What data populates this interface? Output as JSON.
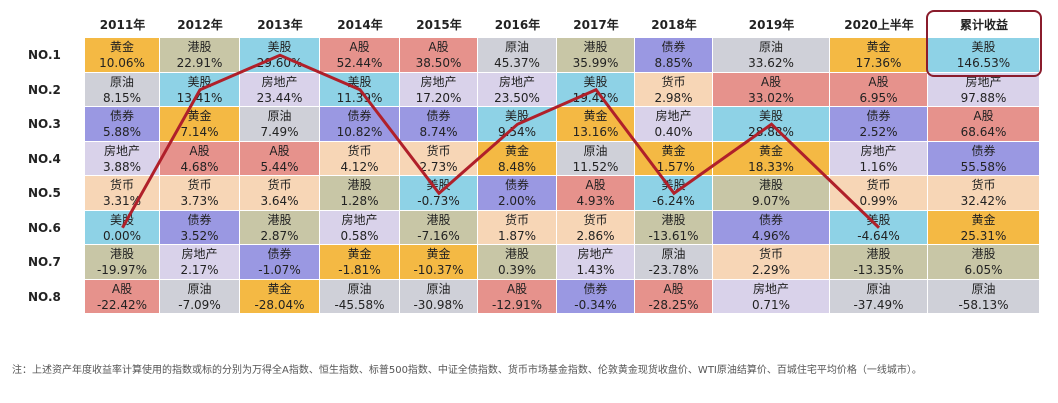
{
  "table": {
    "columns": [
      "2011年",
      "2012年",
      "2013年",
      "2014年",
      "2015年",
      "2016年",
      "2017年",
      "2018年",
      "2019年",
      "2020上半年",
      "累计收益"
    ],
    "highlight_column": 10,
    "line_asset": "美股",
    "line_color": "#b0202a",
    "colors": {
      "黄金": "#f4b944",
      "港股": "#c8c6a6",
      "美股": "#8ed2e6",
      "A股": "#e6928c",
      "原油": "#cfd0d8",
      "债券": "#9a98e2",
      "房地产": "#d9d2ea",
      "货币": "#f7d6b6"
    },
    "rows": [
      {
        "label": "NO.1",
        "cells": [
          [
            "黄金",
            "10.06%"
          ],
          [
            "港股",
            "22.91%"
          ],
          [
            "美股",
            "29.60%"
          ],
          [
            "A股",
            "52.44%"
          ],
          [
            "A股",
            "38.50%"
          ],
          [
            "原油",
            "45.37%"
          ],
          [
            "港股",
            "35.99%"
          ],
          [
            "债券",
            "8.85%"
          ],
          [
            "原油",
            "33.62%"
          ],
          [
            "黄金",
            "17.36%"
          ],
          [
            "美股",
            "146.53%"
          ]
        ]
      },
      {
        "label": "NO.2",
        "cells": [
          [
            "原油",
            "8.15%"
          ],
          [
            "美股",
            "13.41%"
          ],
          [
            "房地产",
            "23.44%"
          ],
          [
            "美股",
            "11.39%"
          ],
          [
            "房地产",
            "17.20%"
          ],
          [
            "房地产",
            "23.50%"
          ],
          [
            "美股",
            "19.42%"
          ],
          [
            "货币",
            "2.98%"
          ],
          [
            "A股",
            "33.02%"
          ],
          [
            "A股",
            "6.95%"
          ],
          [
            "房地产",
            "97.88%"
          ]
        ]
      },
      {
        "label": "NO.3",
        "cells": [
          [
            "债券",
            "5.88%"
          ],
          [
            "黄金",
            "7.14%"
          ],
          [
            "原油",
            "7.49%"
          ],
          [
            "债券",
            "10.82%"
          ],
          [
            "债券",
            "8.74%"
          ],
          [
            "美股",
            "9.54%"
          ],
          [
            "黄金",
            "13.16%"
          ],
          [
            "房地产",
            "0.40%"
          ],
          [
            "美股",
            "28.88%"
          ],
          [
            "债券",
            "2.52%"
          ],
          [
            "A股",
            "68.64%"
          ]
        ]
      },
      {
        "label": "NO.4",
        "cells": [
          [
            "房地产",
            "3.88%"
          ],
          [
            "A股",
            "4.68%"
          ],
          [
            "A股",
            "5.44%"
          ],
          [
            "货币",
            "4.12%"
          ],
          [
            "货币",
            "2.73%"
          ],
          [
            "黄金",
            "8.48%"
          ],
          [
            "原油",
            "11.52%"
          ],
          [
            "黄金",
            "-1.57%"
          ],
          [
            "黄金",
            "18.33%"
          ],
          [
            "房地产",
            "1.16%"
          ],
          [
            "债券",
            "55.58%"
          ]
        ]
      },
      {
        "label": "NO.5",
        "cells": [
          [
            "货币",
            "3.31%"
          ],
          [
            "货币",
            "3.73%"
          ],
          [
            "货币",
            "3.64%"
          ],
          [
            "港股",
            "1.28%"
          ],
          [
            "美股",
            "-0.73%"
          ],
          [
            "债券",
            "2.00%"
          ],
          [
            "A股",
            "4.93%"
          ],
          [
            "美股",
            "-6.24%"
          ],
          [
            "港股",
            "9.07%"
          ],
          [
            "货币",
            "0.99%"
          ],
          [
            "货币",
            "32.42%"
          ]
        ]
      },
      {
        "label": "NO.6",
        "cells": [
          [
            "美股",
            "0.00%"
          ],
          [
            "债券",
            "3.52%"
          ],
          [
            "港股",
            "2.87%"
          ],
          [
            "房地产",
            "0.58%"
          ],
          [
            "港股",
            "-7.16%"
          ],
          [
            "货币",
            "1.87%"
          ],
          [
            "货币",
            "2.86%"
          ],
          [
            "港股",
            "-13.61%"
          ],
          [
            "债券",
            "4.96%"
          ],
          [
            "美股",
            "-4.64%"
          ],
          [
            "黄金",
            "25.31%"
          ]
        ]
      },
      {
        "label": "NO.7",
        "cells": [
          [
            "港股",
            "-19.97%"
          ],
          [
            "房地产",
            "2.17%"
          ],
          [
            "债券",
            "-1.07%"
          ],
          [
            "黄金",
            "-1.81%"
          ],
          [
            "黄金",
            "-10.37%"
          ],
          [
            "港股",
            "0.39%"
          ],
          [
            "房地产",
            "1.43%"
          ],
          [
            "原油",
            "-23.78%"
          ],
          [
            "货币",
            "2.29%"
          ],
          [
            "港股",
            "-13.35%"
          ],
          [
            "港股",
            "6.05%"
          ]
        ]
      },
      {
        "label": "NO.8",
        "cells": [
          [
            "A股",
            "-22.42%"
          ],
          [
            "原油",
            "-7.09%"
          ],
          [
            "黄金",
            "-28.04%"
          ],
          [
            "原油",
            "-45.58%"
          ],
          [
            "原油",
            "-30.98%"
          ],
          [
            "A股",
            "-12.91%"
          ],
          [
            "债券",
            "-0.34%"
          ],
          [
            "A股",
            "-28.25%"
          ],
          [
            "房地产",
            "0.71%"
          ],
          [
            "原油",
            "-37.49%"
          ],
          [
            "原油",
            "-58.13%"
          ]
        ]
      }
    ]
  },
  "footnote": "注：上述资产年度收益率计算使用的指数或标的分别为万得全A指数、恒生指数、标普500指数、中证全债指数、货币市场基金指数、伦敦黄金现货收盘价、WTI原油结算价、百城住宅平均价格（一线城市）。"
}
